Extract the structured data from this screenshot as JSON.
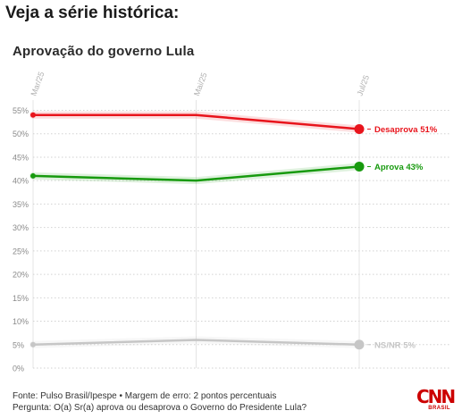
{
  "page": {
    "heading": "Veja a série histórica:"
  },
  "chart_data": {
    "type": "line",
    "title": "Aprovação do governo Lula",
    "categories": [
      "Mar/25",
      "Mai/25",
      "Jul/25"
    ],
    "ylim": [
      0,
      55
    ],
    "yticks": [
      0,
      5,
      10,
      15,
      20,
      25,
      30,
      35,
      40,
      45,
      50,
      55
    ],
    "ytick_labels": [
      "0%",
      "5%",
      "10%",
      "15%",
      "20%",
      "25%",
      "30%",
      "35%",
      "40%",
      "45%",
      "50%",
      "55%"
    ],
    "grid": true,
    "series": [
      {
        "name": "Desaprova",
        "values": [
          54,
          54,
          51
        ],
        "end_label": "Desaprova 51%",
        "color": "#e8141c"
      },
      {
        "name": "Aprova",
        "values": [
          41,
          40,
          43
        ],
        "end_label": "Aprova 43%",
        "color": "#179a0e"
      },
      {
        "name": "NS/NR",
        "values": [
          5,
          6,
          5
        ],
        "end_label": "NS/NR 5%",
        "color": "#c6c6c6"
      }
    ]
  },
  "footer": {
    "source": "Fonte: Pulso Brasil/Ipespe • Margem de erro: 2 pontos percentuais",
    "question": "Pergunta: O(a) Sr(a) aprova ou desaprova o Governo do Presidente Lula?"
  },
  "logo": {
    "mark": "CNN",
    "sub": "BRASIL",
    "color": "#cc0000"
  }
}
